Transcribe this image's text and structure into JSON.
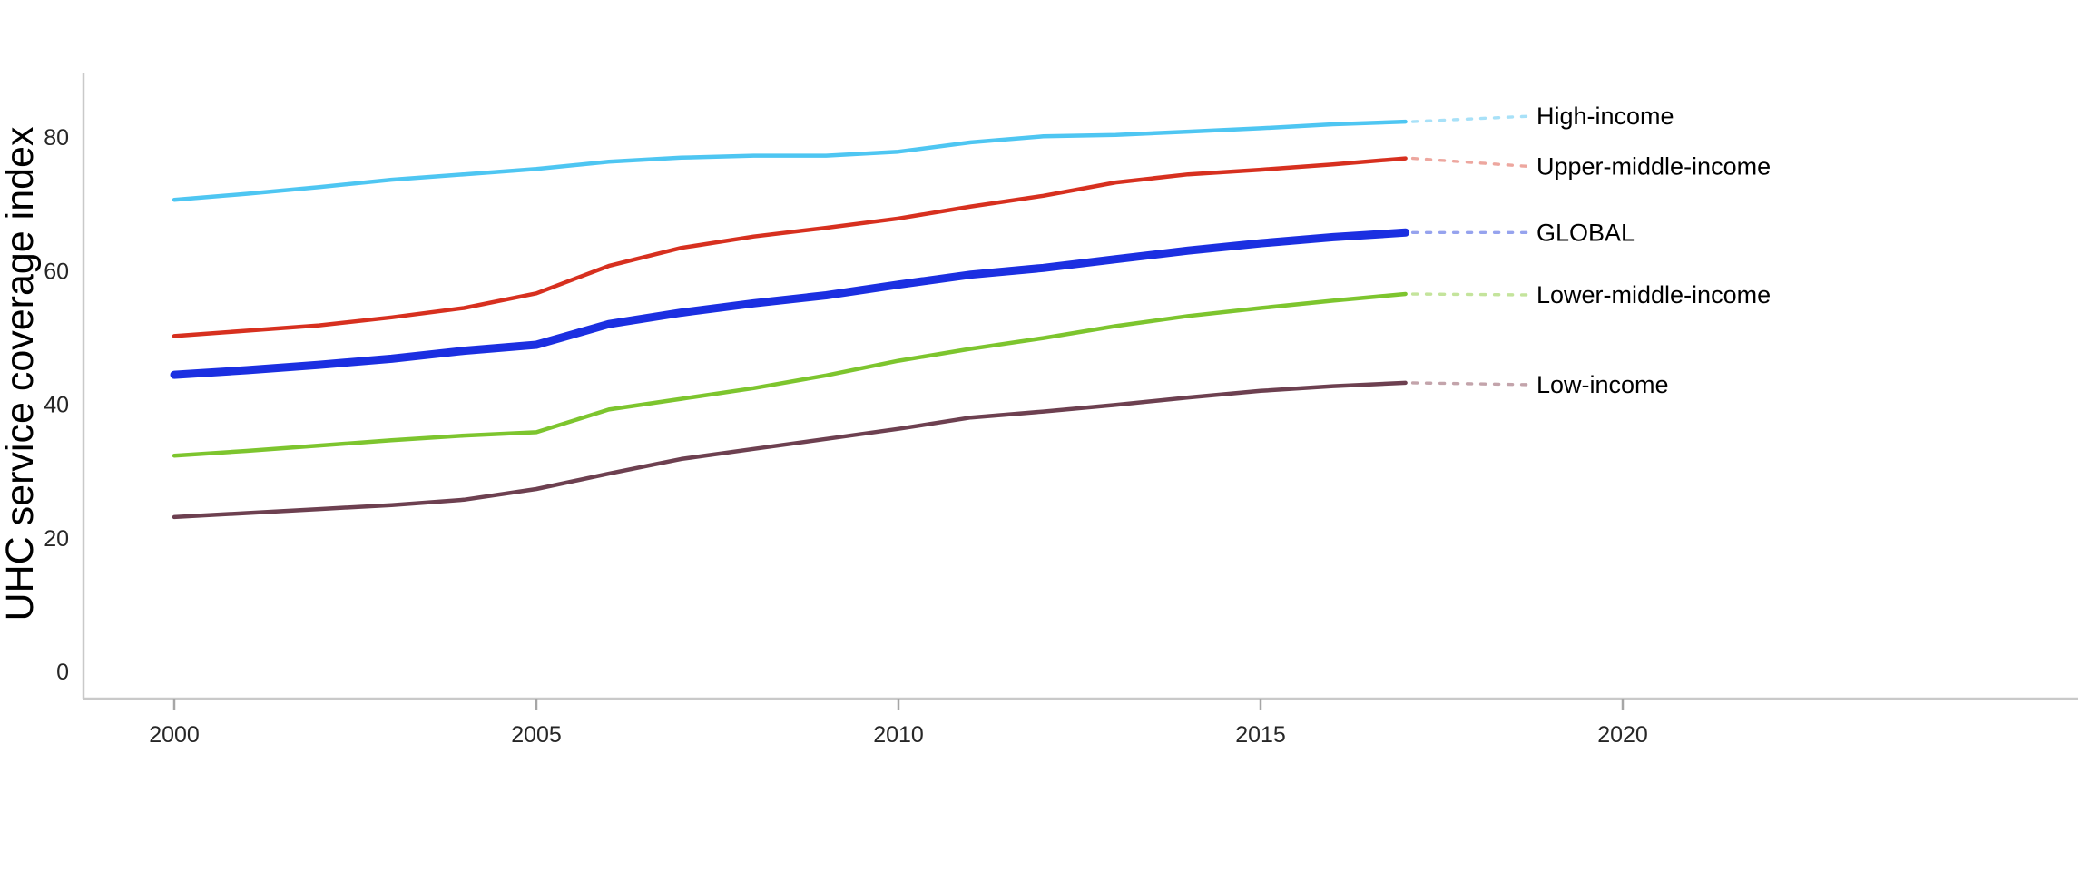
{
  "chart_data": {
    "type": "line",
    "title": "",
    "xlabel": "",
    "ylabel": "UHC service coverage index",
    "x": [
      2000,
      2001,
      2002,
      2003,
      2004,
      2005,
      2006,
      2007,
      2008,
      2009,
      2010,
      2011,
      2012,
      2013,
      2014,
      2015,
      2016,
      2017
    ],
    "x_tick_labels": [
      "2000",
      "2005",
      "2010",
      "2015",
      "2020"
    ],
    "x_tick_values": [
      2000,
      2005,
      2010,
      2015,
      2020
    ],
    "y_tick_labels": [
      "0",
      "20",
      "40",
      "60",
      "80"
    ],
    "y_tick_values": [
      0,
      20,
      40,
      60,
      80
    ],
    "xlim": [
      1998.7,
      2026.3
    ],
    "ylim": [
      -4,
      94
    ],
    "grid": false,
    "legend_position": "labels-at-line-ends-right",
    "series": [
      {
        "name": "High-income",
        "color": "#4ec6f2",
        "connector_color": "#a8e1f8",
        "values": [
          70.6,
          71.5,
          72.5,
          73.6,
          74.4,
          75.2,
          76.3,
          76.9,
          77.2,
          77.2,
          77.8,
          79.2,
          80.1,
          80.3,
          80.8,
          81.3,
          81.9,
          82.3
        ]
      },
      {
        "name": "Upper-middle-income",
        "color": "#d7301f",
        "connector_color": "#eda79f",
        "values": [
          50.2,
          51.0,
          51.8,
          53.0,
          54.4,
          56.6,
          60.7,
          63.4,
          65.1,
          66.4,
          67.8,
          69.6,
          71.2,
          73.2,
          74.4,
          75.1,
          75.9,
          76.8
        ]
      },
      {
        "name": "GLOBAL",
        "color": "#1b2fe1",
        "connector_color": "#96a3ee",
        "emphasis": true,
        "values": [
          44.4,
          45.1,
          45.9,
          46.8,
          48.0,
          48.9,
          52.0,
          53.7,
          55.1,
          56.3,
          57.9,
          59.4,
          60.4,
          61.7,
          63.0,
          64.1,
          65.0,
          65.7
        ]
      },
      {
        "name": "Lower-middle-income",
        "color": "#7dc52e",
        "connector_color": "#c4e49c",
        "values": [
          32.3,
          33.0,
          33.8,
          34.6,
          35.3,
          35.8,
          39.2,
          40.8,
          42.4,
          44.3,
          46.5,
          48.3,
          49.9,
          51.7,
          53.2,
          54.4,
          55.5,
          56.5
        ]
      },
      {
        "name": "Low-income",
        "color": "#6d4050",
        "connector_color": "#c3a4ab",
        "values": [
          23.1,
          23.7,
          24.3,
          24.9,
          25.7,
          27.3,
          29.6,
          31.8,
          33.3,
          34.8,
          36.3,
          38.0,
          38.9,
          39.9,
          41.0,
          42.0,
          42.7,
          43.2
        ]
      }
    ]
  },
  "style": {
    "background_color": "#ffffff",
    "axis_line_color": "#c9c9c9",
    "tick_mark_color": "#a6a6a6",
    "tick_label_color": "#262626",
    "axis_title_color": "#000000",
    "legend_label_color": "#000000"
  }
}
